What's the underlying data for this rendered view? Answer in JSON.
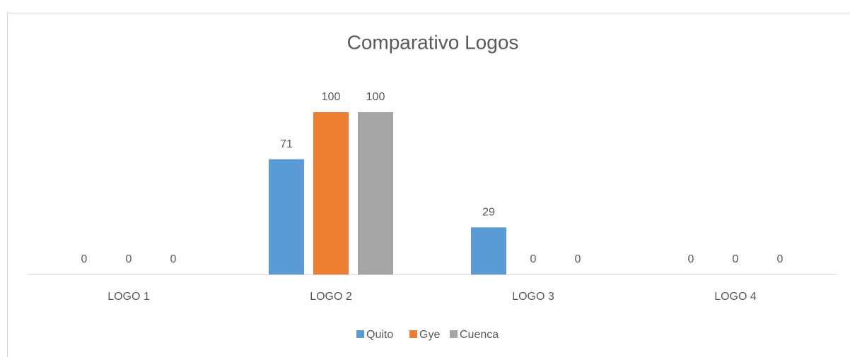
{
  "chart_data": {
    "type": "bar",
    "title": "Comparativo Logos",
    "categories": [
      "LOGO 1",
      "LOGO 2",
      "LOGO 3",
      "LOGO 4"
    ],
    "series": [
      {
        "name": "Quito",
        "color": "#5b9bd5",
        "values": [
          0,
          71,
          29,
          0
        ]
      },
      {
        "name": "Gye",
        "color": "#ed7d31",
        "values": [
          0,
          100,
          0,
          0
        ]
      },
      {
        "name": "Cuenca",
        "color": "#a5a5a5",
        "values": [
          0,
          100,
          0,
          0
        ]
      }
    ],
    "ylim": [
      0,
      100
    ],
    "legend": "bottom"
  }
}
